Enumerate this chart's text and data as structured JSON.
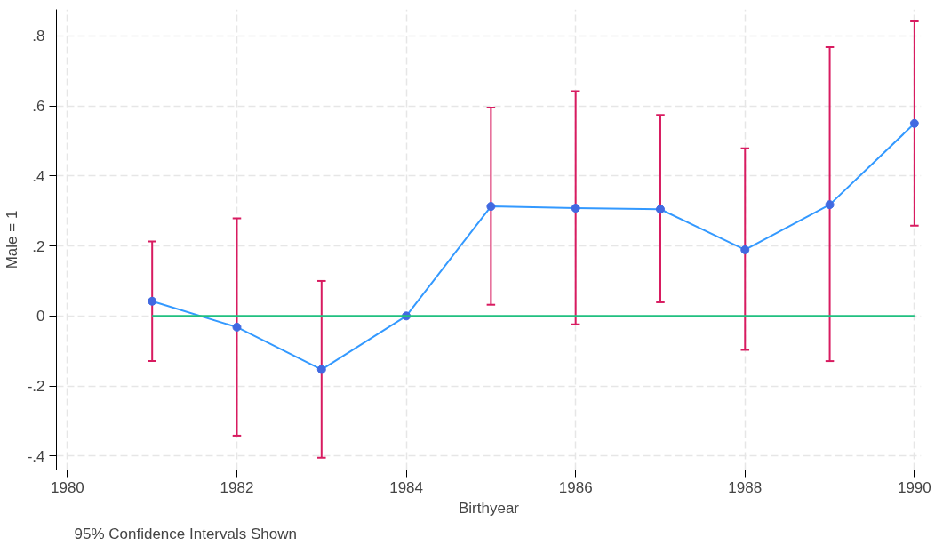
{
  "chart_data": {
    "type": "line",
    "xlabel": "Birthyear",
    "ylabel": "Male = 1",
    "annotations": [
      "95% Confidence Intervals Shown"
    ],
    "x": [
      1981,
      1982,
      1983,
      1984,
      1985,
      1986,
      1987,
      1988,
      1989,
      1990
    ],
    "series": [
      {
        "color": "#3399ff",
        "marker": "circle",
        "values": [
          0.042,
          -0.032,
          -0.153,
          0,
          0.313,
          0.308,
          0.305,
          0.189,
          0.318,
          0.55
        ],
        "errors": [
          [
            -0.129,
            0.213
          ],
          [
            -0.342,
            0.279
          ],
          [
            -0.405,
            0.1
          ],
          null,
          [
            0.032,
            0.595
          ],
          [
            -0.024,
            0.642
          ],
          [
            0.039,
            0.574
          ],
          [
            -0.097,
            0.479
          ],
          [
            -0.129,
            0.768
          ],
          [
            0.258,
            0.842
          ]
        ]
      },
      {
        "type": "line",
        "color": "#20c080",
        "marker": "none",
        "x": [
          1981,
          1990
        ],
        "values": [
          0,
          0
        ]
      }
    ],
    "xlim": [
      1979.87,
      1990.08
    ],
    "ylim": [
      -0.44,
      0.876
    ],
    "xticks": [
      1980,
      1982,
      1984,
      1986,
      1988,
      1990
    ],
    "yticks": [
      {
        "value": -0.4,
        "label": "-.4"
      },
      {
        "value": -0.2,
        "label": "-.2"
      },
      0,
      {
        "value": 0.2,
        "label": ".2"
      },
      {
        "value": 0.4,
        "label": ".4"
      },
      {
        "value": 0.6,
        "label": ".6"
      },
      {
        "value": 0.8,
        "label": ".8"
      }
    ],
    "grid": true,
    "line_style": "solid"
  }
}
